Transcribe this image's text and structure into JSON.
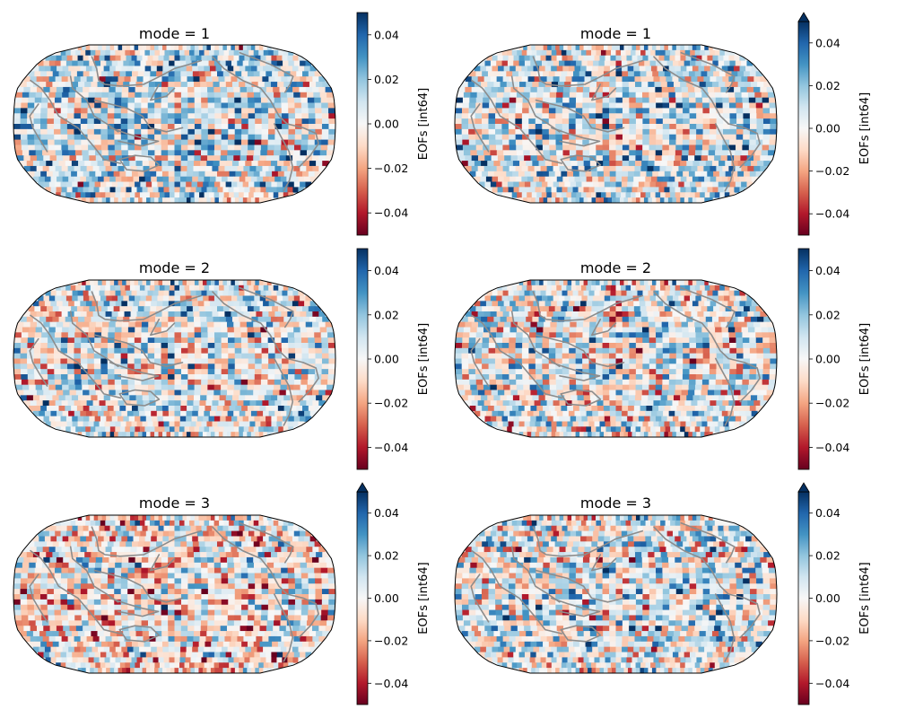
{
  "chart_data": [
    {
      "type": "heatmap",
      "title": "mode = 1",
      "colorbar": {
        "label": "EOFs [int64]",
        "ticks": [
          0.04,
          0.02,
          0.0,
          -0.02,
          -0.04
        ],
        "tick_labels": [
          "0.04",
          "0.02",
          "0.00",
          "−0.02",
          "−0.04"
        ],
        "range": [
          -0.05,
          0.05
        ],
        "extend": "neither",
        "colormap": "RdBu"
      },
      "projection": "Robinson",
      "bias": 0.4,
      "seed": 11
    },
    {
      "type": "heatmap",
      "title": "mode = 1",
      "colorbar": {
        "label": "EOFs [int64]",
        "ticks": [
          0.04,
          0.02,
          0.0,
          -0.02,
          -0.04
        ],
        "tick_labels": [
          "0.04",
          "0.02",
          "0.00",
          "−0.02",
          "−0.04"
        ],
        "range": [
          -0.05,
          0.05
        ],
        "extend": "max",
        "colormap": "RdBu"
      },
      "projection": "Robinson",
      "bias": 0.35,
      "seed": 23
    },
    {
      "type": "heatmap",
      "title": "mode = 2",
      "colorbar": {
        "label": "EOFs [int64]",
        "ticks": [
          0.04,
          0.02,
          0.0,
          -0.02,
          -0.04
        ],
        "tick_labels": [
          "0.04",
          "0.02",
          "0.00",
          "−0.02",
          "−0.04"
        ],
        "range": [
          -0.05,
          0.05
        ],
        "extend": "neither",
        "colormap": "RdBu"
      },
      "projection": "Robinson",
      "bias": 0.2,
      "seed": 37
    },
    {
      "type": "heatmap",
      "title": "mode = 2",
      "colorbar": {
        "label": "EOFs [int64]",
        "ticks": [
          0.04,
          0.02,
          0.0,
          -0.02,
          -0.04
        ],
        "tick_labels": [
          "0.04",
          "0.02",
          "0.00",
          "−0.02",
          "−0.04"
        ],
        "range": [
          -0.05,
          0.05
        ],
        "extend": "neither",
        "colormap": "RdBu"
      },
      "projection": "Robinson",
      "bias": 0.1,
      "seed": 41
    },
    {
      "type": "heatmap",
      "title": "mode = 3",
      "colorbar": {
        "label": "EOFs [int64]",
        "ticks": [
          0.04,
          0.02,
          0.0,
          -0.02,
          -0.04
        ],
        "tick_labels": [
          "0.04",
          "0.02",
          "0.00",
          "−0.02",
          "−0.04"
        ],
        "range": [
          -0.05,
          0.05
        ],
        "extend": "max",
        "colormap": "RdBu"
      },
      "projection": "Robinson",
      "bias": -0.15,
      "seed": 53
    },
    {
      "type": "heatmap",
      "title": "mode = 3",
      "colorbar": {
        "label": "EOFs [int64]",
        "ticks": [
          0.04,
          0.02,
          0.0,
          -0.02,
          -0.04
        ],
        "tick_labels": [
          "0.04",
          "0.02",
          "0.00",
          "−0.02",
          "−0.04"
        ],
        "range": [
          -0.05,
          0.05
        ],
        "extend": "max",
        "colormap": "RdBu"
      },
      "projection": "Robinson",
      "bias": 0.25,
      "seed": 67
    }
  ],
  "colors": {
    "coastline": "#8c8c8c",
    "map_border": "#000000",
    "colormap_stops": [
      "#67001f",
      "#b2182b",
      "#d6604d",
      "#f4a582",
      "#fddbc7",
      "#f7f7f7",
      "#d1e5f0",
      "#92c5de",
      "#4393c3",
      "#2166ac",
      "#053061"
    ]
  }
}
